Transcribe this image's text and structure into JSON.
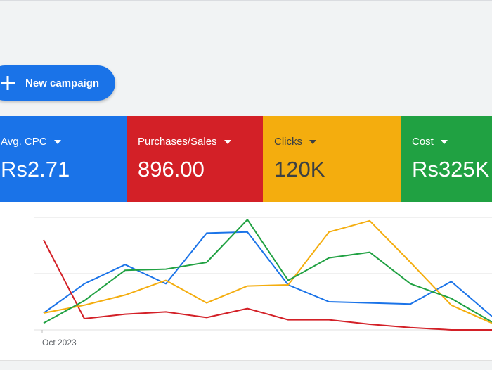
{
  "toolbar": {
    "new_campaign_label": "New campaign"
  },
  "metrics": [
    {
      "label": "Avg. CPC",
      "value": "Rs2.71",
      "color": "#1a73e8",
      "text_color": "#ffffff"
    },
    {
      "label": "Purchases/Sales",
      "value": "896.00",
      "color": "#d32027",
      "text_color": "#ffffff"
    },
    {
      "label": "Clicks",
      "value": "120K",
      "color": "#f4ad0e",
      "text_color": "#3c4043"
    },
    {
      "label": "Cost",
      "value": "Rs325K",
      "color": "#20a142",
      "text_color": "#ffffff"
    }
  ],
  "icons": {
    "new_campaign": "plus-icon",
    "metric_dropdown": "caret-down-icon"
  },
  "chart_data": {
    "type": "line",
    "x": [
      "Oct 2023",
      "",
      "",
      "",
      "",
      "",
      "",
      "",
      "",
      "",
      "",
      ""
    ],
    "x_tick_labels": [
      "Oct 2023"
    ],
    "ylim": [
      0,
      100
    ],
    "grid": true,
    "series": [
      {
        "color": "#1a73e8",
        "values": [
          15,
          41,
          58,
          41,
          86,
          87,
          40,
          25,
          24,
          23,
          43,
          12
        ]
      },
      {
        "color": "#d32027",
        "values": [
          80,
          10,
          14,
          16,
          11,
          19,
          9,
          9,
          5,
          2,
          0,
          0
        ]
      },
      {
        "color": "#f4ad0e",
        "values": [
          15,
          22,
          31,
          44,
          24,
          39,
          40,
          87,
          97,
          60,
          22,
          6
        ]
      },
      {
        "color": "#20a142",
        "values": [
          6,
          26,
          53,
          54,
          60,
          98,
          44,
          64,
          69,
          41,
          28,
          7
        ]
      }
    ]
  }
}
